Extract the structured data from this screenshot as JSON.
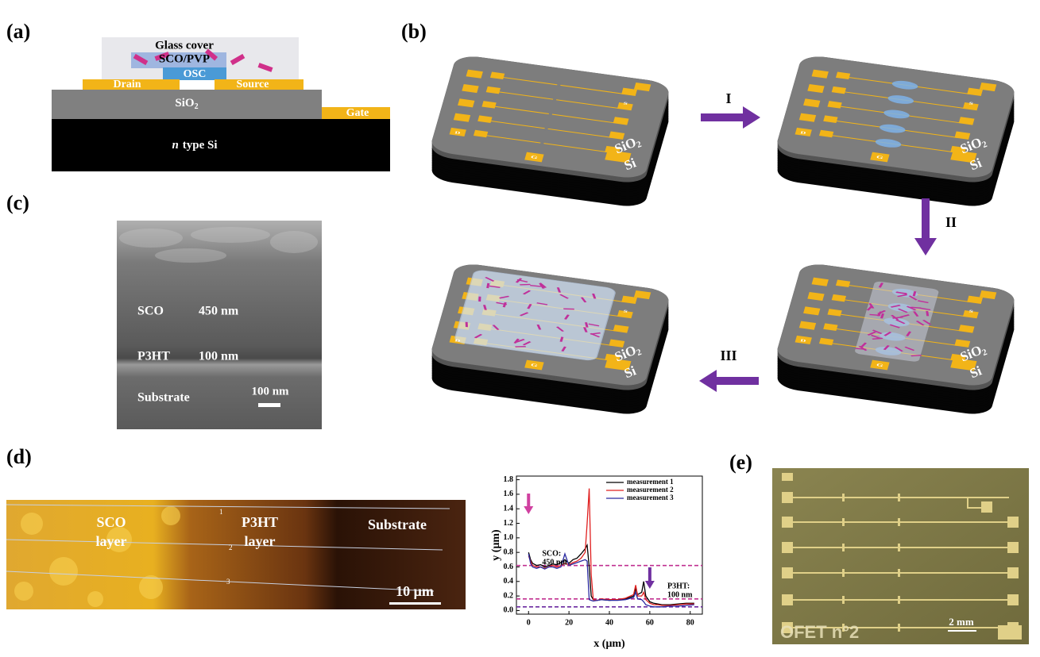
{
  "panels": {
    "a": {
      "label": "(a)",
      "glass": "Glass cover",
      "sco": "SCO/PVP",
      "osc": "OSC",
      "drain": "Drain",
      "source": "Source",
      "sio2": {
        "text": "SiO",
        "sub": "2"
      },
      "gate": "Gate",
      "si": {
        "italic": "n",
        "text": "type Si"
      }
    },
    "b": {
      "label": "(b)",
      "steps": [
        "I",
        "II",
        "III"
      ],
      "devices": [
        {
          "sio2": {
            "text": "SiO",
            "sub": "2"
          },
          "si": "Si",
          "d": "D",
          "s": "S",
          "g": "G"
        },
        {
          "sio2": {
            "text": "SiO",
            "sub": "2"
          },
          "si": "Si",
          "d": "D",
          "s": "S",
          "g": "G"
        },
        {
          "sio2": {
            "text": "SiO",
            "sub": "2"
          },
          "si": "Si",
          "d": "D",
          "s": "S",
          "g": "G"
        },
        {
          "sio2": {
            "text": "SiO",
            "sub": "2"
          },
          "si": "Si",
          "d": "D",
          "s": "S",
          "g": "G"
        }
      ]
    },
    "c": {
      "label": "(c)",
      "rows": [
        [
          "SCO",
          "450 nm"
        ],
        [
          "P3HT",
          "100 nm"
        ],
        [
          "Substrate",
          "100 nm"
        ]
      ]
    },
    "d": {
      "label": "(d)",
      "regions": [
        [
          "SCO",
          "layer"
        ],
        [
          "P3HT",
          "layer"
        ],
        [
          "Substrate"
        ]
      ],
      "lines": [
        "1",
        "2",
        "3"
      ],
      "scale": "10 μm"
    },
    "e": {
      "label": "(e)",
      "name": "OFET n°2",
      "scale": "2 mm"
    }
  },
  "chart_data": {
    "type": "line",
    "xlabel": "x (μm)",
    "ylabel": "y (μm)",
    "xlim": [
      -6,
      86
    ],
    "ylim": [
      -0.05,
      1.85
    ],
    "xticks": [
      0,
      20,
      40,
      60,
      80
    ],
    "yticks": [
      {
        "value": 0,
        "label": "0.0"
      },
      0.2,
      0.4,
      0.6,
      0.8,
      {
        "value": 1,
        "label": "1.0"
      },
      1.2,
      1.4,
      1.6,
      1.8
    ],
    "x": [
      0,
      1,
      2,
      4,
      6,
      8,
      10,
      12,
      14,
      16,
      18,
      20,
      22,
      24,
      26,
      28,
      29,
      30,
      31,
      32,
      34,
      36,
      40,
      44,
      48,
      52,
      53,
      54,
      56,
      57,
      58,
      60,
      62,
      64,
      66,
      70,
      74,
      78,
      82
    ],
    "series": [
      {
        "name": "measurement 1",
        "color": "#000000",
        "values": [
          0.8,
          0.7,
          0.65,
          0.62,
          0.63,
          0.6,
          0.62,
          0.64,
          0.63,
          0.66,
          0.7,
          0.65,
          0.7,
          0.72,
          0.78,
          0.85,
          0.9,
          0.6,
          0.2,
          0.15,
          0.14,
          0.15,
          0.14,
          0.15,
          0.16,
          0.2,
          0.3,
          0.22,
          0.25,
          0.4,
          0.2,
          0.12,
          0.1,
          0.09,
          0.08,
          0.08,
          0.09,
          0.1,
          0.1
        ]
      },
      {
        "name": "measurement 2",
        "color": "#e02020",
        "values": [
          0.75,
          0.68,
          0.62,
          0.6,
          0.6,
          0.58,
          0.6,
          0.62,
          0.6,
          0.62,
          0.65,
          0.63,
          0.66,
          0.68,
          0.72,
          0.8,
          1.2,
          1.68,
          0.5,
          0.15,
          0.14,
          0.16,
          0.15,
          0.15,
          0.17,
          0.22,
          0.35,
          0.2,
          0.2,
          0.25,
          0.15,
          0.1,
          0.08,
          0.08,
          0.07,
          0.07,
          0.08,
          0.09,
          0.09
        ]
      },
      {
        "name": "measurement 3",
        "color": "#2a2aa0",
        "values": [
          0.78,
          0.65,
          0.6,
          0.58,
          0.6,
          0.57,
          0.6,
          0.6,
          0.58,
          0.6,
          0.78,
          0.62,
          0.64,
          0.66,
          0.68,
          0.7,
          0.68,
          0.15,
          0.14,
          0.13,
          0.14,
          0.15,
          0.14,
          0.14,
          0.15,
          0.18,
          0.25,
          0.16,
          0.15,
          0.12,
          0.08,
          0.06,
          0.05,
          0.05,
          0.05,
          0.06,
          0.06,
          0.07,
          0.08
        ]
      }
    ],
    "hlines": [
      {
        "value": 0.62,
        "color": "#c03090"
      },
      {
        "value": 0.16,
        "color": "#c03090"
      },
      {
        "value": 0.05,
        "color": "#6a2aa0"
      }
    ],
    "annotations": [
      {
        "text": "SCO:",
        "x": 2,
        "y": 0.78
      },
      {
        "text": "450 nm",
        "x": 2,
        "y": 0.66
      },
      {
        "text": "P3HT:",
        "x": 64,
        "y": 0.33
      },
      {
        "text": "100 nm",
        "x": 64,
        "y": 0.21
      }
    ]
  }
}
